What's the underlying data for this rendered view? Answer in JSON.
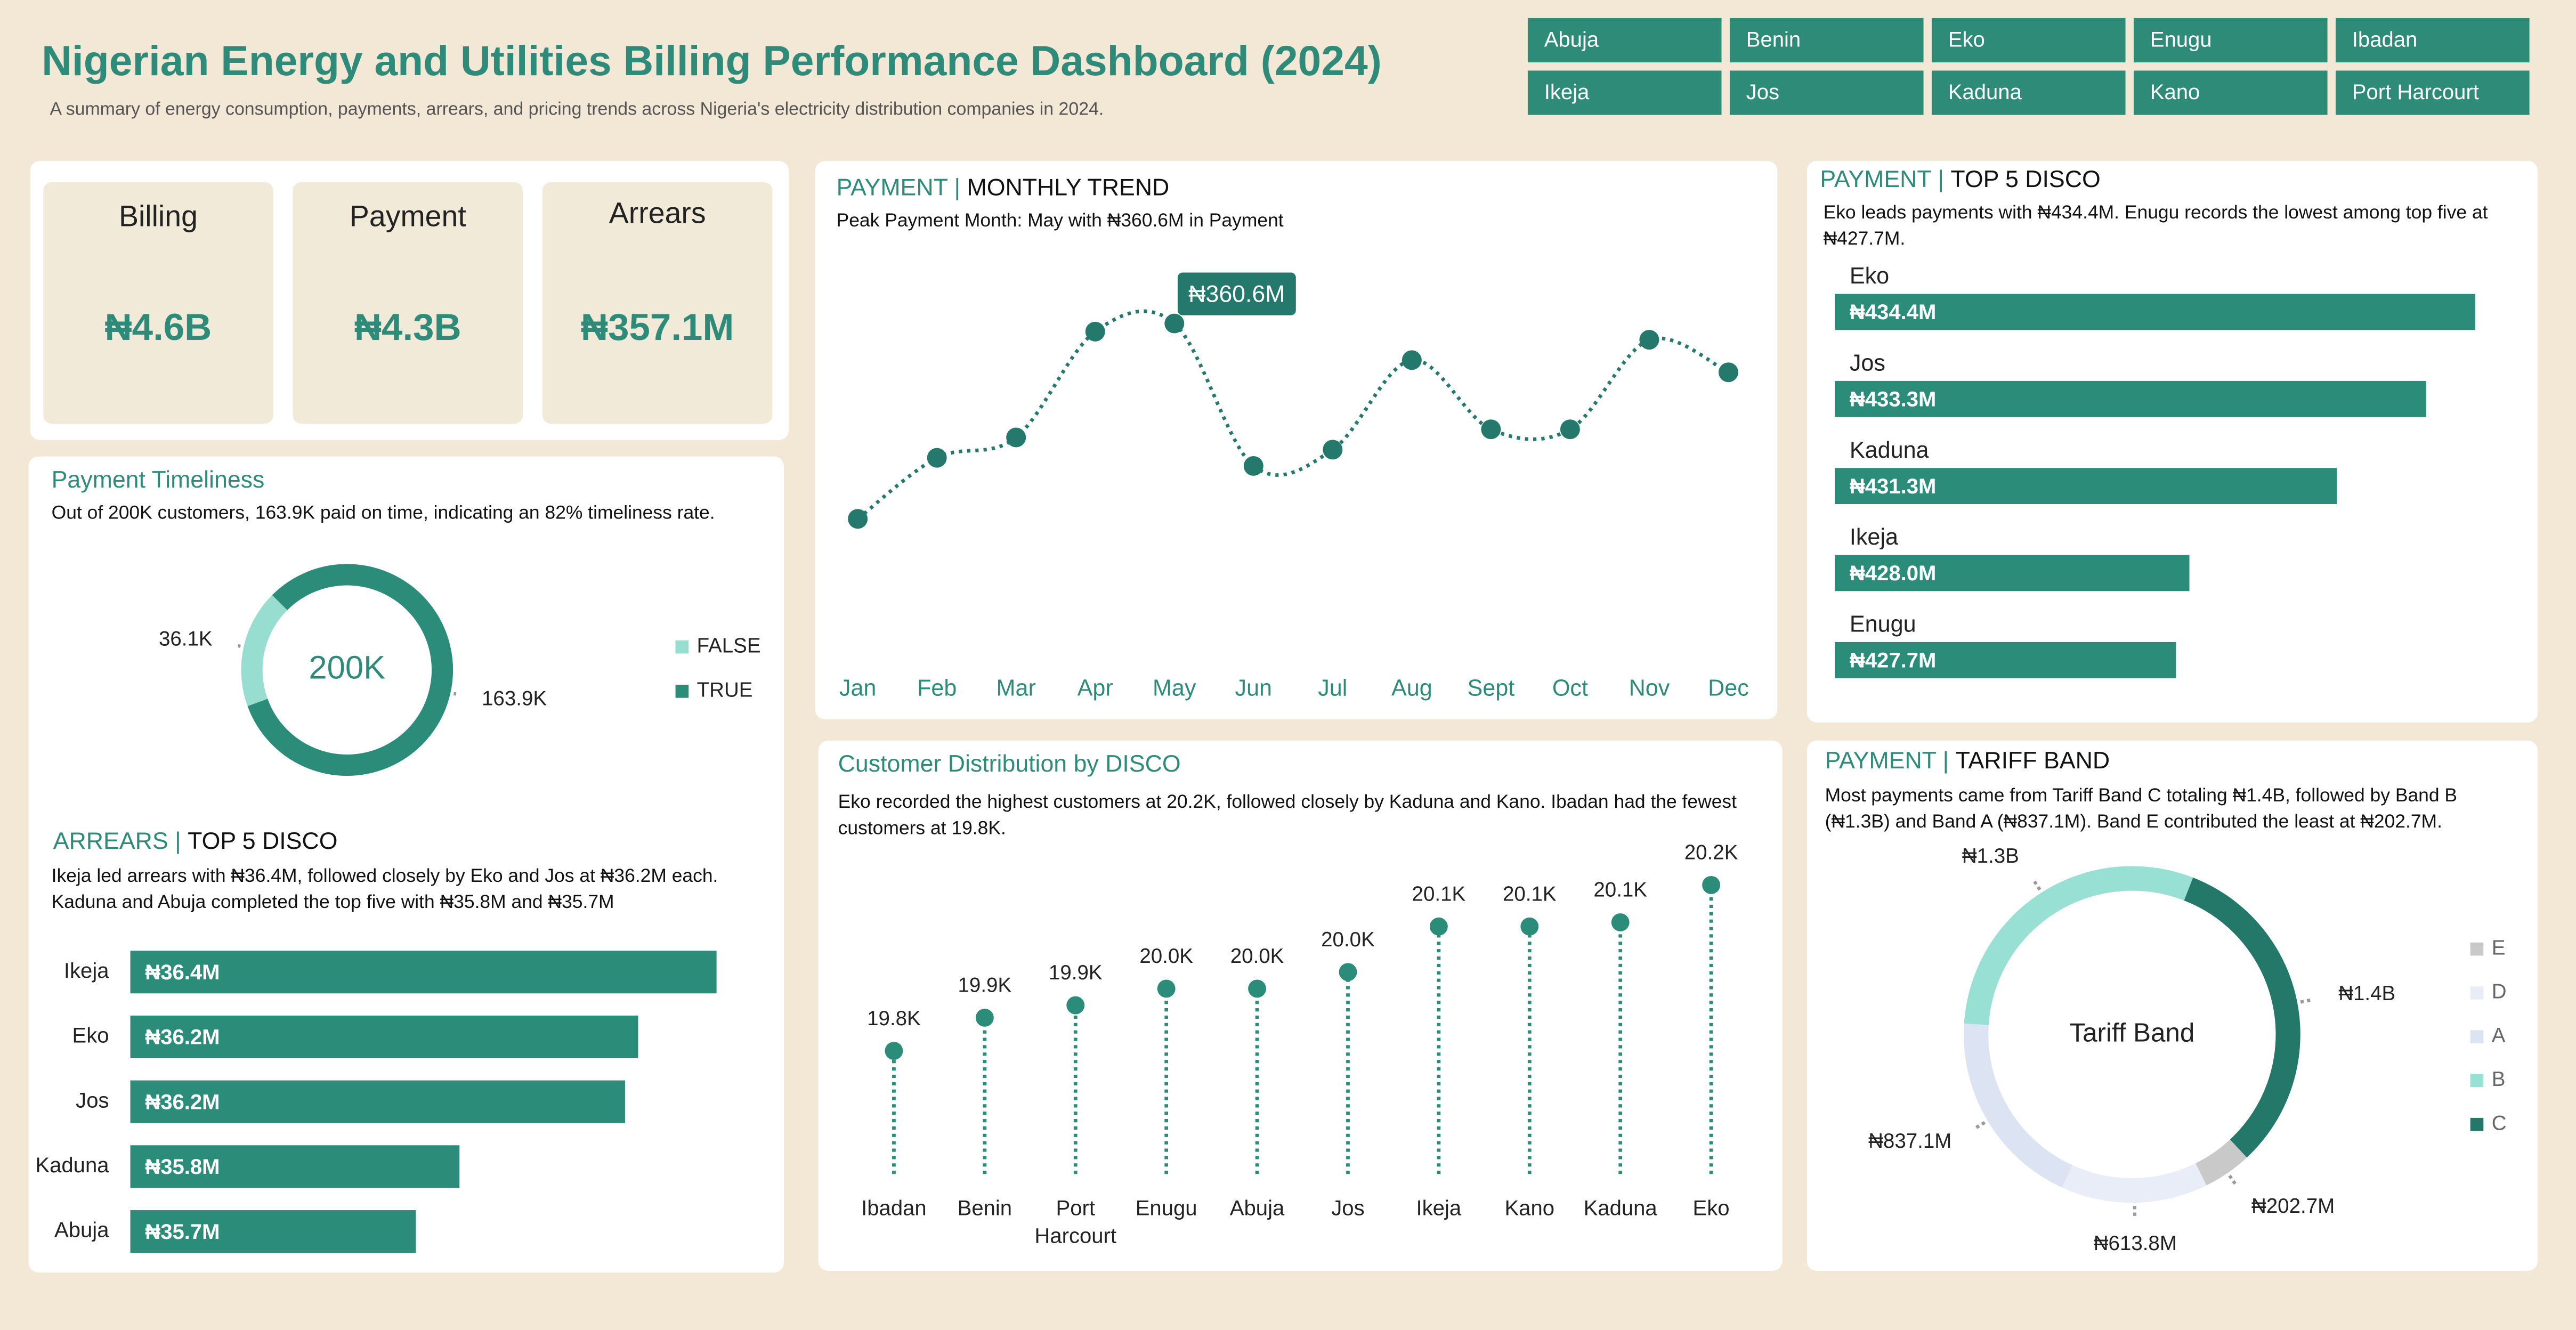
{
  "header": {
    "title": "Nigerian Energy and Utilities Billing Performance Dashboard (2024)",
    "subtitle": "A summary of energy consumption, payments, arrears, and pricing trends across Nigeria's electricity distribution companies in 2024."
  },
  "slicers": [
    "Abuja",
    "Benin",
    "Eko",
    "Enugu",
    "Ibadan",
    "Ikeja",
    "Jos",
    "Kaduna",
    "Kano",
    "Port Harcourt"
  ],
  "kpis": [
    {
      "label": "Billing",
      "value": "₦4.6B"
    },
    {
      "label": "Payment",
      "value": "₦4.3B"
    },
    {
      "label": "Arrears",
      "value": "₦357.1M"
    }
  ],
  "chart_data": [
    {
      "type": "donut",
      "title": "Payment Timeliness",
      "subtitle": "Out of 200K customers, 163.9K paid on time, indicating an 82% timeliness rate.",
      "center_label": "200K",
      "categories": [
        "FALSE",
        "TRUE"
      ],
      "values": [
        36100,
        163900
      ],
      "value_labels": [
        "36.1K",
        "163.9K"
      ],
      "colors": [
        "#97ddd0",
        "#2a8c79"
      ]
    },
    {
      "type": "bar",
      "title_prefix": "ARREARS |",
      "title": "TOP 5 DISCO",
      "subtitle": "Ikeja led arrears with ₦36.4M, followed closely by Eko and Jos at ₦36.2M each. Kaduna and Abuja completed the top five with ₦35.8M and ₦35.7M",
      "categories": [
        "Ikeja",
        "Eko",
        "Jos",
        "Kaduna",
        "Abuja"
      ],
      "values": [
        36.4,
        36.22,
        36.19,
        35.81,
        35.71
      ],
      "value_labels": [
        "₦36.4M",
        "₦36.2M",
        "₦36.2M",
        "₦35.8M",
        "₦35.7M"
      ],
      "color": "#2a8c79"
    },
    {
      "type": "line",
      "title_prefix": "PAYMENT |",
      "title": "MONTHLY TREND",
      "subtitle": "Peak Payment Month: May with ₦360.6M in Payment",
      "categories": [
        "Jan",
        "Feb",
        "Mar",
        "Apr",
        "May",
        "Jun",
        "Jul",
        "Aug",
        "Sept",
        "Oct",
        "Nov",
        "Dec"
      ],
      "values": [
        355.8,
        357.3,
        357.8,
        360.4,
        360.6,
        357.1,
        357.5,
        359.7,
        358.0,
        358.0,
        360.2,
        359.4
      ],
      "value_labels": [
        null,
        null,
        null,
        null,
        "₦360.6M",
        null,
        null,
        null,
        null,
        null,
        null,
        null
      ],
      "color": "#24786c"
    },
    {
      "type": "lollipop",
      "title": "Customer Distribution by DISCO",
      "subtitle": "Eko recorded the highest customers at 20.2K, followed closely by Kaduna and Kano. Ibadan had the fewest customers at 19.8K.",
      "categories": [
        "Ibadan",
        "Benin",
        "Port Harcourt",
        "Enugu",
        "Abuja",
        "Jos",
        "Ikeja",
        "Kano",
        "Kaduna",
        "Eko"
      ],
      "values": [
        19800,
        19880,
        19910,
        19950,
        19950,
        19990,
        20100,
        20100,
        20110,
        20200
      ],
      "value_labels": [
        "19.8K",
        "19.9K",
        "19.9K",
        "20.0K",
        "20.0K",
        "20.0K",
        "20.1K",
        "20.1K",
        "20.1K",
        "20.2K"
      ],
      "color": "#2a8c79"
    },
    {
      "type": "bar",
      "title_prefix": "PAYMENT |",
      "title": "TOP 5 DISCO",
      "subtitle": "Eko leads payments with ₦434.4M. Enugu records the lowest among top five at ₦427.7M.",
      "categories": [
        "Eko",
        "Jos",
        "Kaduna",
        "Ikeja",
        "Enugu"
      ],
      "values": [
        434.4,
        433.3,
        431.3,
        428.0,
        427.7
      ],
      "value_labels": [
        "₦434.4M",
        "₦433.3M",
        "₦431.3M",
        "₦428.0M",
        "₦427.7M"
      ],
      "color": "#2a8c79"
    },
    {
      "type": "donut",
      "title_prefix": "PAYMENT |",
      "title": "TARIFF BAND",
      "subtitle": "Most payments came from Tariff Band C totaling ₦1.4B, followed by Band B (₦1.3B) and Band A (₦837.1M). Band E contributed the least at ₦202.7M.",
      "center_label": "Tariff Band",
      "categories": [
        "E",
        "D",
        "A",
        "B",
        "C"
      ],
      "values": [
        202.7,
        613.8,
        837.1,
        1300,
        1400
      ],
      "value_labels": [
        "₦202.7M",
        "₦613.8M",
        "₦837.1M",
        "₦1.3B",
        "₦1.4B"
      ],
      "colors": [
        "#c9c9c9",
        "#e9edf7",
        "#dce3f3",
        "#97e0d3",
        "#23786a"
      ]
    }
  ]
}
